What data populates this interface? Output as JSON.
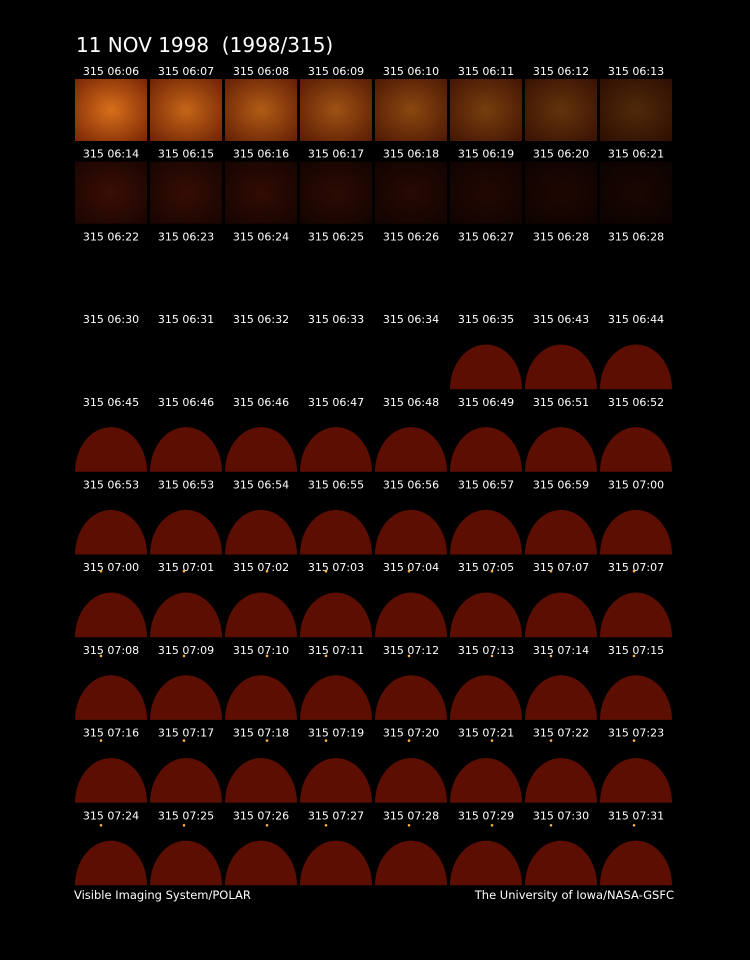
{
  "title": "11 NOV 1998  (1998/315)",
  "frames": [
    [
      "315 06:06",
      "315 06:07",
      "315 06:08",
      "315 06:09",
      "315 06:10",
      "315 06:11",
      "315 06:12",
      "315 06:13"
    ],
    [
      "315 06:14",
      "315 06:15",
      "315 06:16",
      "315 06:17",
      "315 06:18",
      "315 06:19",
      "315 06:20",
      "315 06:21"
    ],
    [
      "315 06:22",
      "315 06:23",
      "315 06:24",
      "315 06:25",
      "315 06:26",
      "315 06:27",
      "315 06:28",
      "315 06:28"
    ],
    [
      "315 06:30",
      "315 06:31",
      "315 06:32",
      "315 06:33",
      "315 06:34",
      "315 06:35",
      "315 06:43",
      "315 06:44"
    ],
    [
      "315 06:45",
      "315 06:46",
      "315 06:46",
      "315 06:47",
      "315 06:48",
      "315 06:49",
      "315 06:51",
      "315 06:52"
    ],
    [
      "315 06:53",
      "315 06:53",
      "315 06:54",
      "315 06:55",
      "315 06:56",
      "315 06:57",
      "315 06:59",
      "315 07:00"
    ],
    [
      "315 07:00",
      "315 07:01",
      "315 07:02",
      "315 07:03",
      "315 07:04",
      "315 07:05",
      "315 07:07",
      "315 07:07"
    ],
    [
      "315 07:08",
      "315 07:09",
      "315 07:10",
      "315 07:11",
      "315 07:12",
      "315 07:13",
      "315 07:14",
      "315 07:15"
    ],
    [
      "315 07:16",
      "315 07:17",
      "315 07:18",
      "315 07:19",
      "315 07:20",
      "315 07:21",
      "315 07:22",
      "315 07:23"
    ],
    [
      "315 07:24",
      "315 07:25",
      "315 07:26",
      "315 07:27",
      "315 07:28",
      "315 07:29",
      "315 07:30",
      "315 07:31"
    ]
  ],
  "footer": {
    "left": "Visible Imaging System/POLAR",
    "right": "The University of Iowa/NASA-GSFC"
  }
}
